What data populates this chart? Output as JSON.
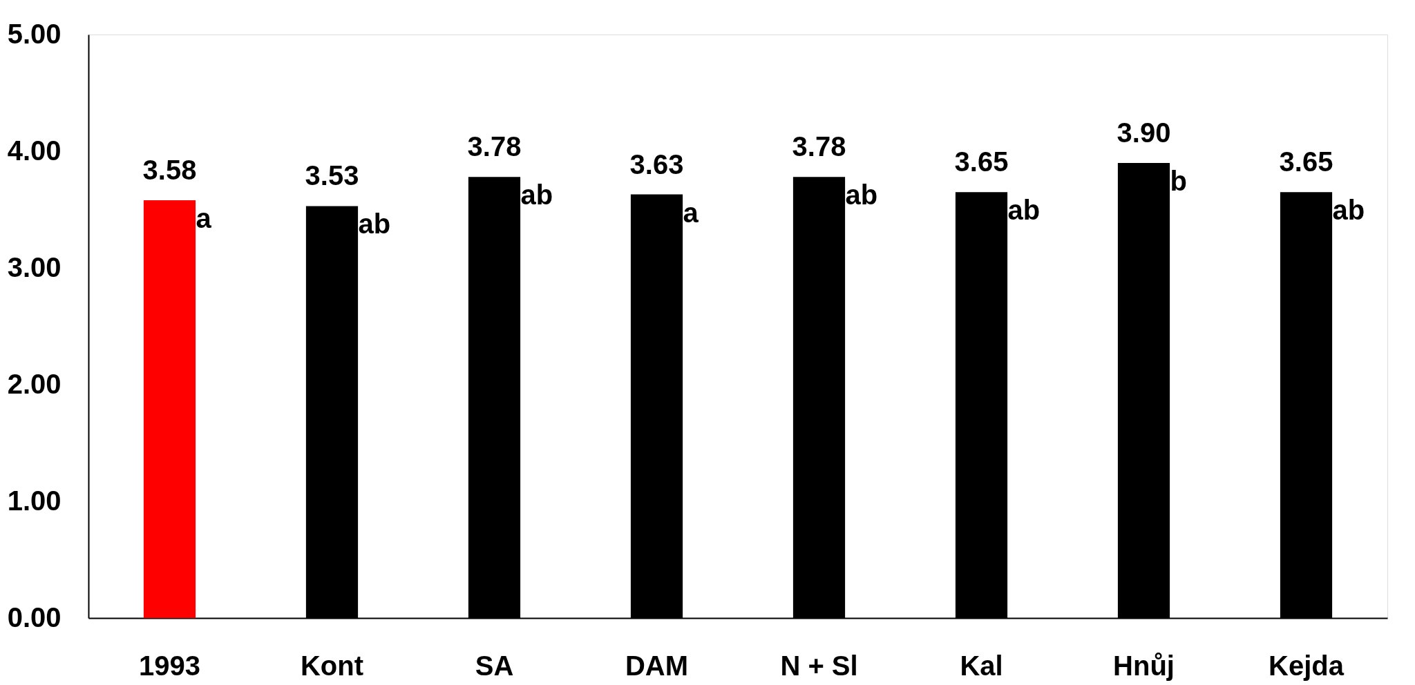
{
  "chart_data": {
    "type": "bar",
    "categories": [
      "1993",
      "Kont",
      "SA",
      "DAM",
      "N + Sl",
      "Kal",
      "Hnůj",
      "Kejda"
    ],
    "values": [
      3.58,
      3.53,
      3.78,
      3.63,
      3.78,
      3.65,
      3.9,
      3.65
    ],
    "colors": [
      "#ff0000",
      "#000000",
      "#000000",
      "#000000",
      "#000000",
      "#000000",
      "#000000",
      "#000000"
    ],
    "value_labels": [
      "3.58",
      "3.53",
      "3.78",
      "3.63",
      "3.78",
      "3.65",
      "3.90",
      "3.65"
    ],
    "ylim": [
      0,
      5
    ],
    "yticks": [
      {
        "value": 0,
        "label": "0.00"
      },
      {
        "value": 1,
        "label": "1.00"
      },
      {
        "value": 2,
        "label": "2.00"
      },
      {
        "value": 3,
        "label": "3.00"
      },
      {
        "value": 4,
        "label": "4.00"
      },
      {
        "value": 5,
        "label": "5.00"
      }
    ],
    "grid": false,
    "annotations": [
      {
        "text": "a",
        "x": "1993",
        "y": 3.58
      },
      {
        "text": "ab",
        "x": "Kont",
        "y": 3.53
      },
      {
        "text": "ab",
        "x": "SA",
        "y": 3.78
      },
      {
        "text": "a",
        "x": "DAM",
        "y": 3.63
      },
      {
        "text": "ab",
        "x": "N + Sl",
        "y": 3.78
      },
      {
        "text": "ab",
        "x": "Kal",
        "y": 3.65
      },
      {
        "text": "b",
        "x": "Hnůj",
        "y": 3.9
      },
      {
        "text": "ab",
        "x": "Kejda",
        "y": 3.65
      }
    ]
  }
}
